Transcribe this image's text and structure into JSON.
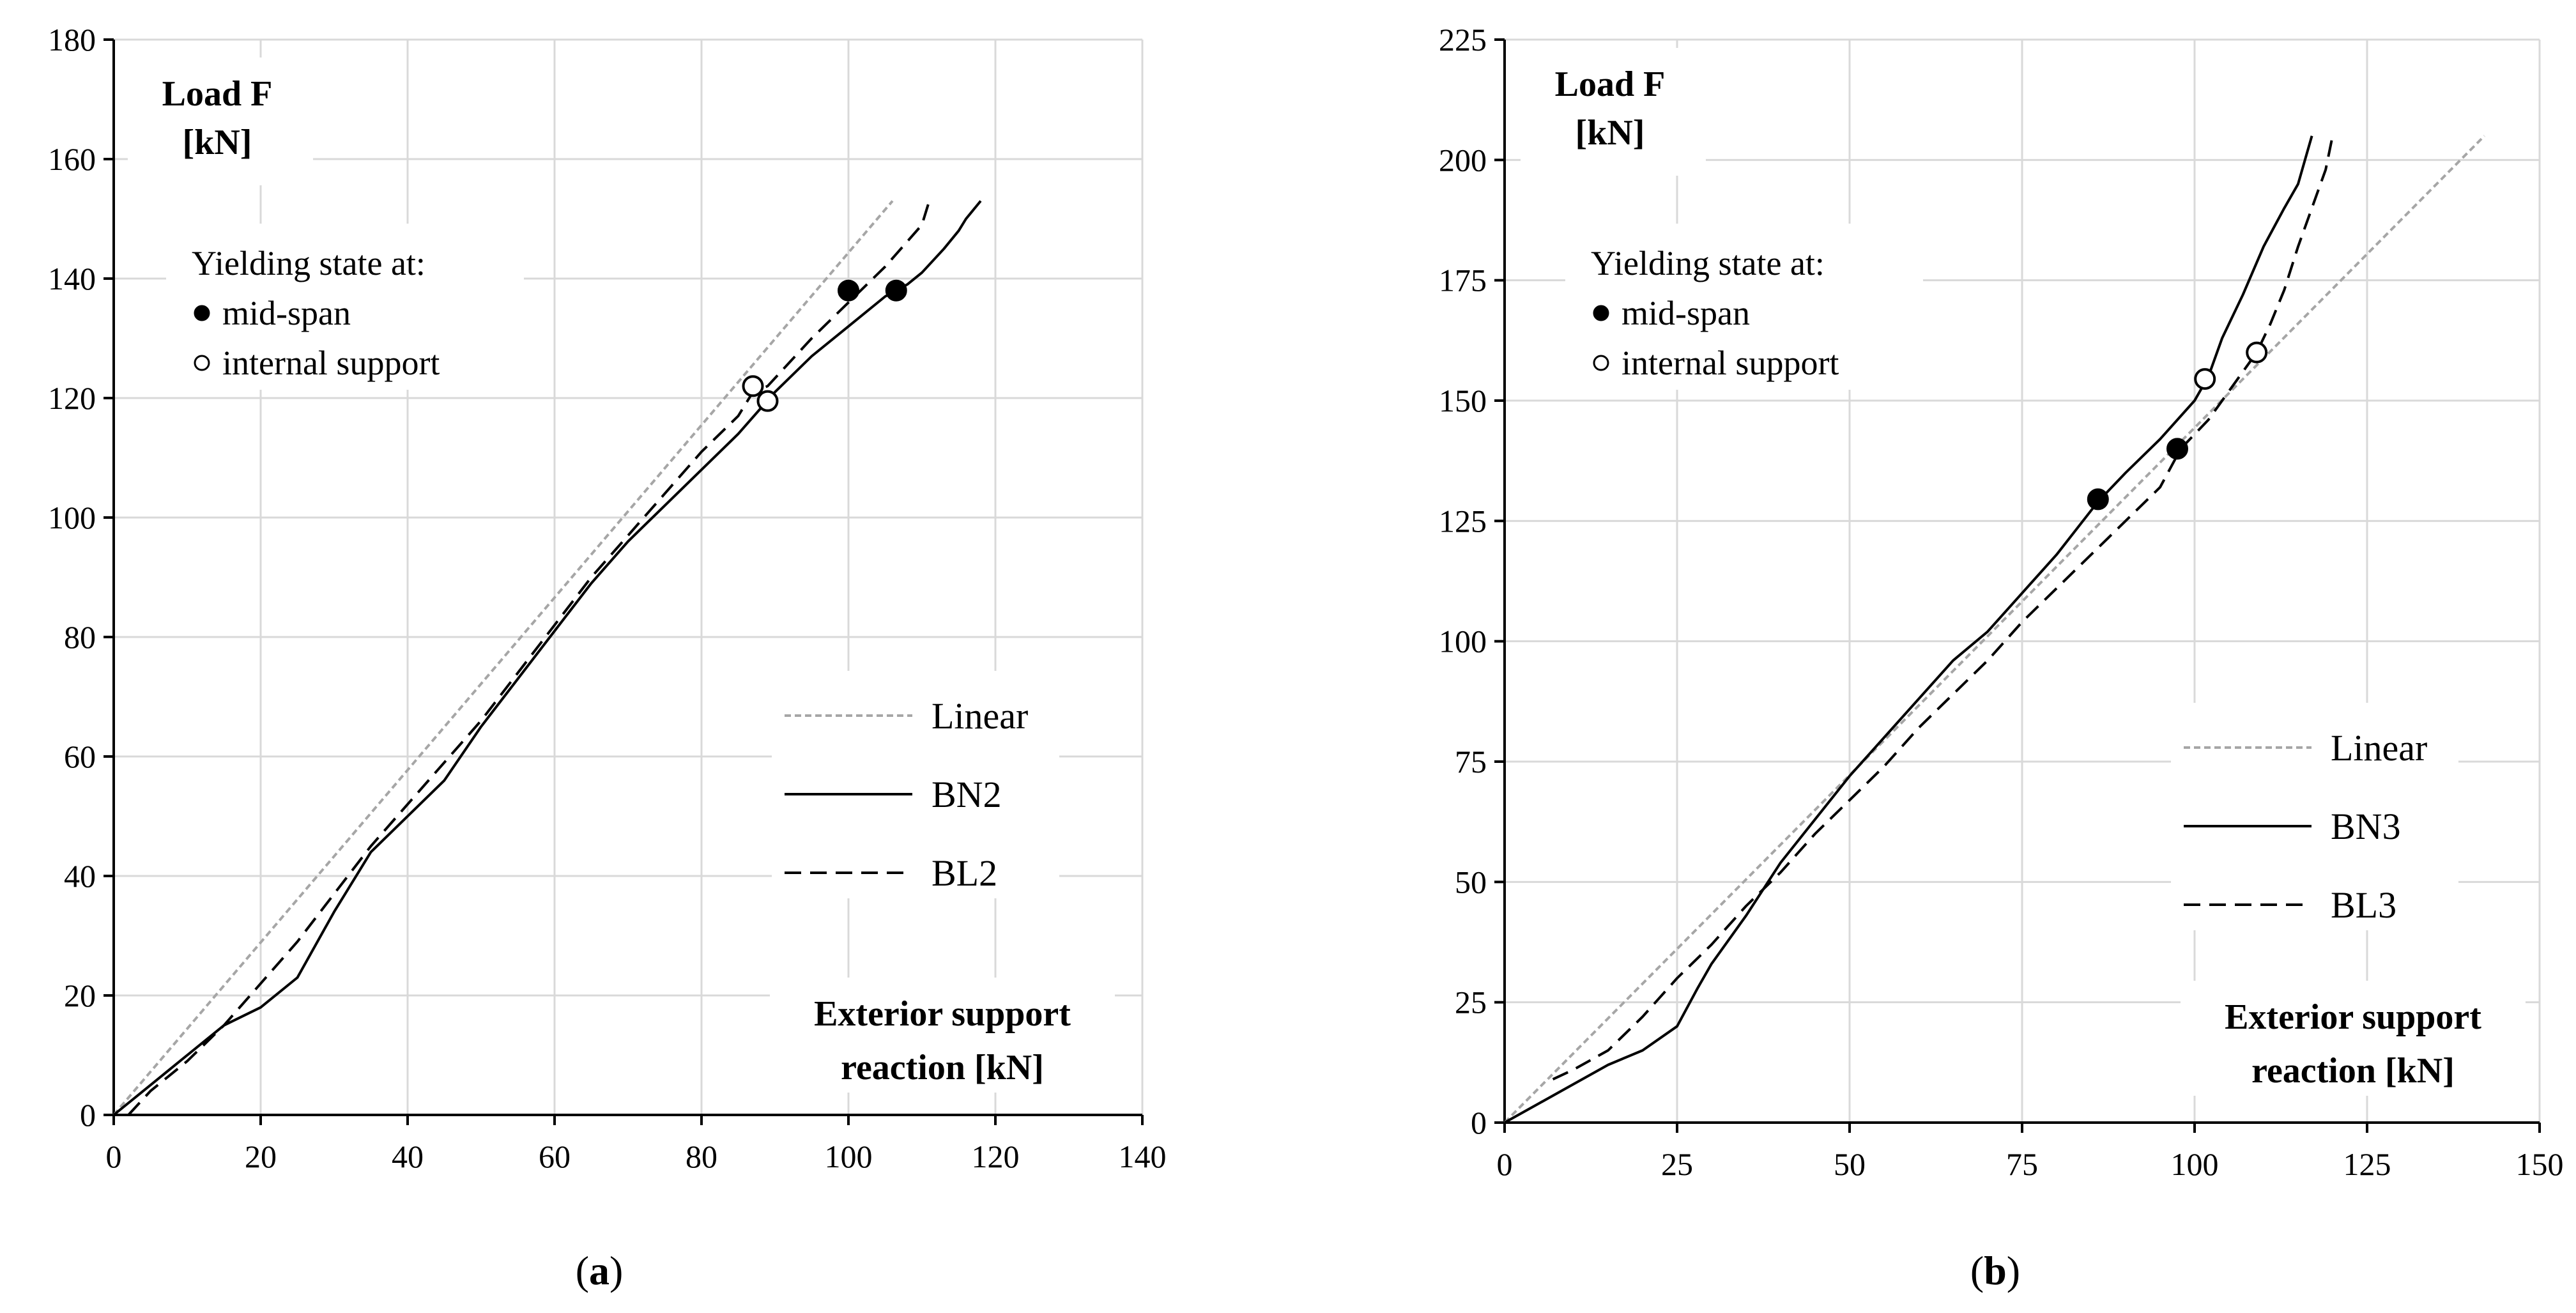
{
  "chart_data": [
    {
      "type": "line",
      "panel": "a",
      "caption_left": "(",
      "caption_letter": "a",
      "caption_right": ")",
      "xlabel": [
        "Exterior support",
        "reaction [kN]"
      ],
      "ylabel": [
        "Load F",
        "[kN]"
      ],
      "xlim": [
        0,
        140
      ],
      "ylim": [
        0,
        180
      ],
      "xticks": [
        0,
        20,
        40,
        60,
        80,
        100,
        120,
        140
      ],
      "yticks": [
        0,
        20,
        40,
        60,
        80,
        100,
        120,
        140,
        160,
        180
      ],
      "grid": true,
      "note": {
        "title": "Yielding state at:",
        "filled": "mid-span",
        "open": "internal support"
      },
      "legend_position": "center-right",
      "series": [
        {
          "name": "Linear",
          "style": "dotted",
          "x": [
            0,
            106
          ],
          "y": [
            0,
            153
          ]
        },
        {
          "name": "BN2",
          "style": "solid",
          "x": [
            0,
            5,
            10,
            15,
            20,
            25,
            30,
            35,
            40,
            45,
            50,
            55,
            60,
            65,
            70,
            75,
            80,
            85,
            90,
            95,
            100,
            105,
            108,
            110,
            113,
            115,
            116,
            118
          ],
          "y": [
            0,
            5,
            10,
            15,
            18,
            23,
            34,
            44,
            50,
            56,
            65,
            73,
            81,
            89,
            96,
            102,
            108,
            114,
            121,
            127,
            132,
            137,
            139,
            141,
            145,
            148,
            150,
            153
          ]
        },
        {
          "name": "BL2",
          "style": "dashed",
          "x": [
            2,
            5,
            10,
            15,
            20,
            25,
            30,
            35,
            40,
            45,
            50,
            55,
            60,
            65,
            70,
            75,
            80,
            85,
            87,
            89,
            92,
            95,
            100,
            105,
            110,
            111
          ],
          "y": [
            0,
            4,
            9,
            15,
            22,
            29,
            37,
            45,
            52,
            59,
            66,
            74,
            82,
            90,
            97,
            104,
            111,
            117,
            121,
            122,
            126,
            130,
            136,
            142,
            149,
            153
          ]
        }
      ],
      "markers": [
        {
          "type": "filled",
          "x": 100,
          "y": 138
        },
        {
          "type": "filled",
          "x": 106.5,
          "y": 138
        },
        {
          "type": "open",
          "x": 87,
          "y": 122
        },
        {
          "type": "open",
          "x": 89,
          "y": 119.5
        }
      ]
    },
    {
      "type": "line",
      "panel": "b",
      "caption_left": "(",
      "caption_letter": "b",
      "caption_right": ")",
      "xlabel": [
        "Exterior support",
        "reaction [kN]"
      ],
      "ylabel": [
        "Load F",
        "[kN]"
      ],
      "xlim": [
        0,
        150
      ],
      "ylim": [
        0,
        225
      ],
      "xticks": [
        0,
        25,
        50,
        75,
        100,
        125,
        150
      ],
      "yticks": [
        0,
        25,
        50,
        75,
        100,
        125,
        150,
        175,
        200,
        225
      ],
      "grid": true,
      "note": {
        "title": "Yielding state at:",
        "filled": "mid-span",
        "open": "internal support"
      },
      "legend_position": "center-right",
      "series": [
        {
          "name": "Linear",
          "style": "dotted",
          "x": [
            0,
            142
          ],
          "y": [
            0,
            205
          ]
        },
        {
          "name": "BN3",
          "style": "solid",
          "x": [
            0,
            5,
            10,
            15,
            20,
            25,
            28,
            30,
            32,
            35,
            40,
            45,
            50,
            55,
            60,
            65,
            70,
            75,
            80,
            86,
            90,
            95,
            100,
            102,
            104,
            107,
            110,
            113,
            115,
            116,
            117
          ],
          "y": [
            0,
            4,
            8,
            12,
            15,
            20,
            28,
            33,
            37,
            43,
            54,
            63,
            72,
            80,
            88,
            96,
            102,
            110,
            118,
            129,
            135,
            142,
            150,
            155,
            163,
            172,
            182,
            190,
            195,
            200,
            205
          ]
        },
        {
          "name": "BL3",
          "style": "dashed",
          "x": [
            7,
            10,
            15,
            20,
            25,
            30,
            35,
            40,
            45,
            50,
            55,
            60,
            65,
            70,
            75,
            80,
            85,
            90,
            95,
            98,
            102,
            105,
            109,
            111,
            113,
            115,
            117,
            119,
            120
          ],
          "y": [
            9,
            11,
            15,
            22,
            30,
            37,
            45,
            52,
            60,
            67,
            74,
            82,
            89,
            96,
            104,
            111,
            118,
            125,
            132,
            140,
            146,
            152,
            160,
            166,
            173,
            182,
            190,
            198,
            205
          ]
        }
      ],
      "markers": [
        {
          "type": "filled",
          "x": 86,
          "y": 129.5
        },
        {
          "type": "filled",
          "x": 97.5,
          "y": 140
        },
        {
          "type": "open",
          "x": 101.5,
          "y": 154.5
        },
        {
          "type": "open",
          "x": 109,
          "y": 160
        }
      ]
    }
  ]
}
